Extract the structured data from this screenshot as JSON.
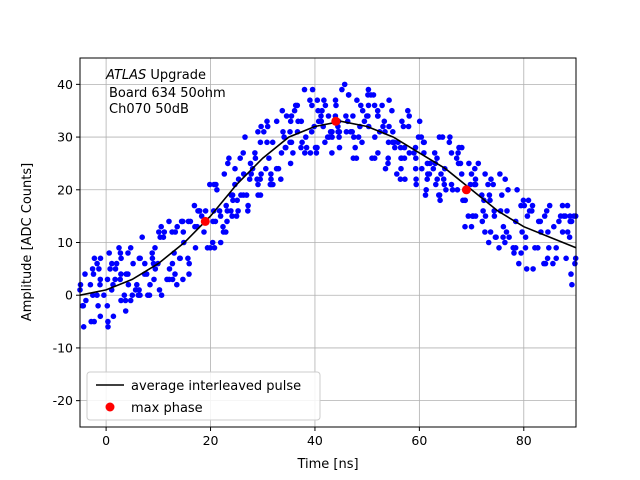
{
  "chart_data": {
    "type": "scatter",
    "title": "",
    "xlabel": "Time [ns]",
    "ylabel": "Amplitude [ADC Counts]",
    "xlim": [
      -5,
      90
    ],
    "ylim": [
      -25,
      45
    ],
    "xticks": [
      0,
      20,
      40,
      60,
      80
    ],
    "yticks": [
      -20,
      -10,
      0,
      10,
      20,
      30,
      40
    ],
    "grid": true,
    "legend_placement": "lower-left",
    "annotations": {
      "experiment": "ATLAS",
      "line1_suffix": " Upgrade",
      "line2": "Board 634 50ohm",
      "line3": "Ch070 50dB"
    },
    "colors": {
      "samples": "#0000ff",
      "average": "#000000",
      "max_phase": "#ff0000"
    },
    "series": [
      {
        "name": "average interleaved pulse",
        "kind": "line",
        "x": [
          -5,
          0,
          5,
          10,
          15,
          20,
          25,
          30,
          35,
          40,
          45,
          50,
          55,
          60,
          65,
          70,
          75,
          80,
          85,
          90
        ],
        "y": [
          0,
          1,
          3,
          6,
          10,
          15,
          21,
          26,
          30,
          32,
          33,
          32,
          30,
          27,
          24,
          20,
          16,
          13,
          11,
          9
        ]
      },
      {
        "name": "max phase",
        "kind": "points",
        "x": [
          19,
          44,
          69
        ],
        "y": [
          14,
          33,
          20
        ]
      },
      {
        "name": "",
        "kind": "samples",
        "scatter_range": 7,
        "x": [
          -5,
          -4,
          -3,
          -2,
          -1,
          0,
          1,
          2,
          3,
          4,
          5,
          6,
          7,
          8,
          9,
          10,
          11,
          12,
          13,
          14,
          15,
          16,
          17,
          18,
          19,
          20,
          21,
          22,
          23,
          24,
          25,
          26,
          27,
          28,
          29,
          30,
          31,
          32,
          33,
          34,
          35,
          36,
          37,
          38,
          39,
          40,
          41,
          42,
          43,
          44,
          45,
          46,
          47,
          48,
          49,
          50,
          51,
          52,
          53,
          54,
          55,
          56,
          57,
          58,
          59,
          60,
          61,
          62,
          63,
          64,
          65,
          66,
          67,
          68,
          69,
          70,
          71,
          72,
          73,
          74,
          75,
          76,
          77,
          78,
          79,
          80,
          81,
          82,
          83,
          84,
          85,
          86,
          87,
          88,
          89,
          90
        ],
        "y": [
          0,
          0,
          0,
          1,
          1,
          1,
          1,
          2,
          2,
          2,
          3,
          3,
          4,
          4,
          5,
          6,
          7,
          7,
          8,
          9,
          10,
          11,
          12,
          13,
          14,
          15,
          16,
          17,
          18,
          20,
          21,
          22,
          23,
          24,
          25,
          26,
          27,
          28,
          29,
          30,
          30,
          31,
          31,
          32,
          32,
          32,
          32,
          32,
          33,
          33,
          33,
          33,
          32,
          32,
          32,
          32,
          31,
          31,
          30,
          30,
          30,
          29,
          28,
          28,
          27,
          27,
          26,
          25,
          25,
          24,
          24,
          23,
          22,
          21,
          20,
          20,
          19,
          18,
          17,
          16,
          16,
          15,
          14,
          14,
          13,
          13,
          12,
          12,
          11,
          11,
          11,
          10,
          10,
          10,
          9,
          9
        ]
      }
    ]
  }
}
